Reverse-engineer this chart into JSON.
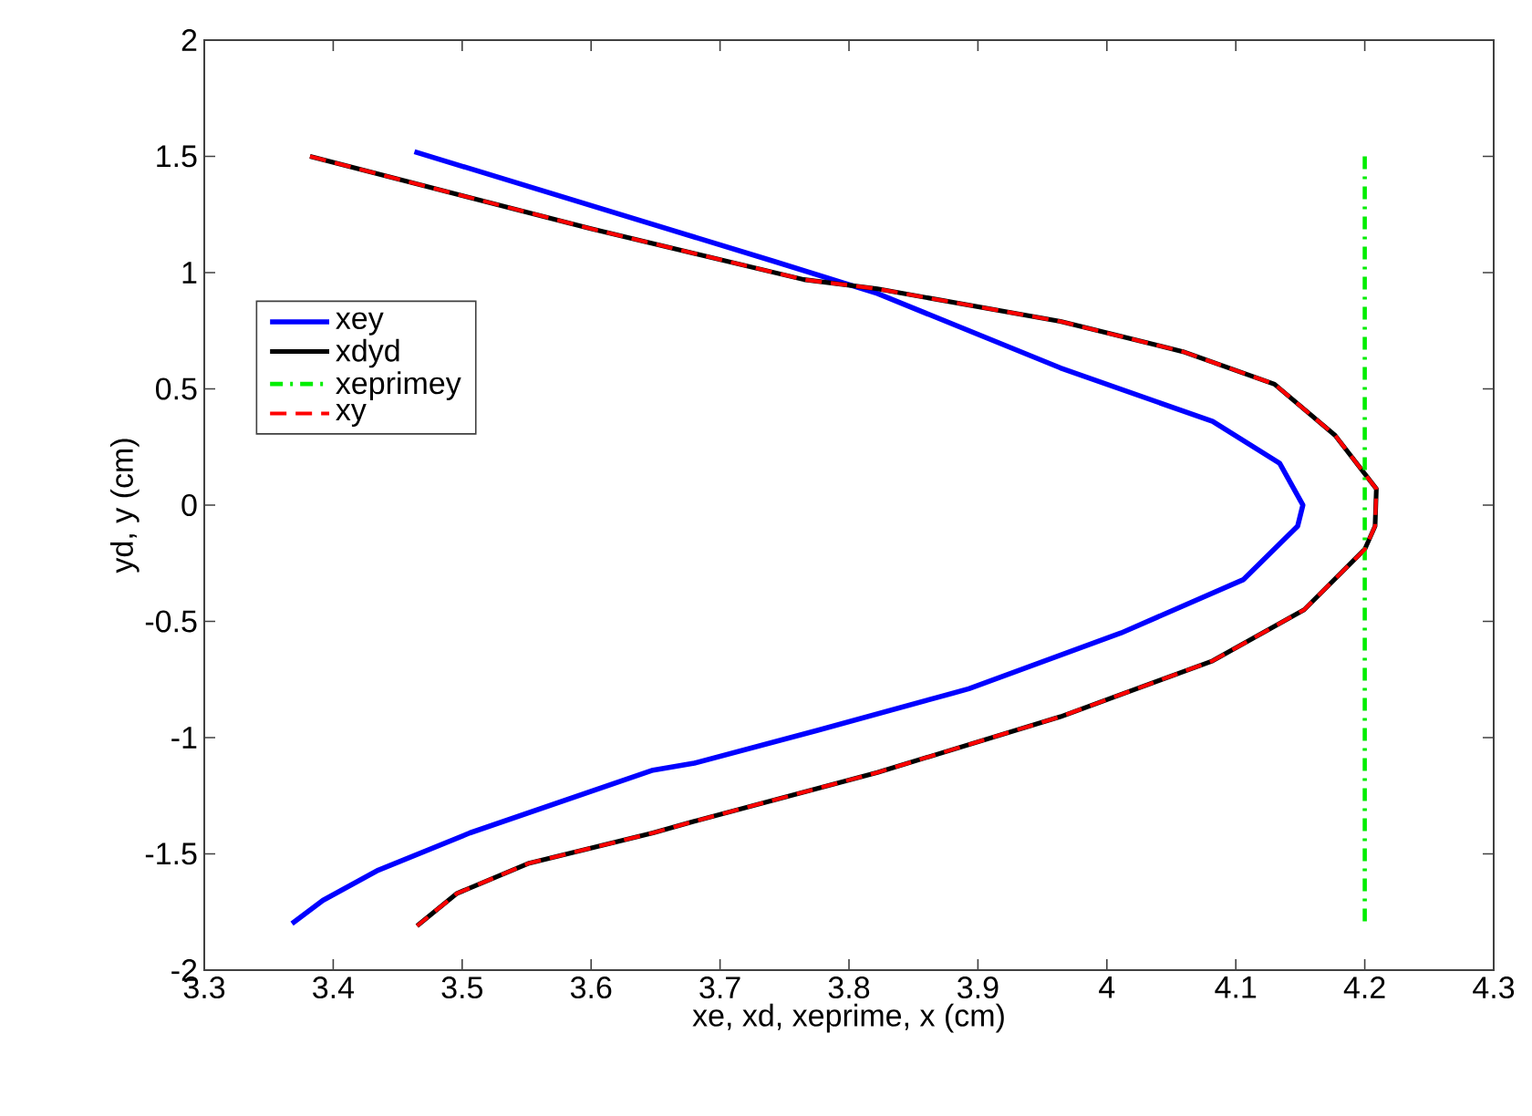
{
  "chart_data": {
    "type": "line",
    "xlabel": "xe, xd, xeprime, x (cm)",
    "ylabel": "yd, y (cm)",
    "xlim": [
      3.3,
      4.3
    ],
    "xticks": [
      3.3,
      3.4,
      3.5,
      3.6,
      3.7,
      3.8,
      3.9,
      4,
      4.1,
      4.2,
      4.3
    ],
    "ylim": [
      -2,
      2
    ],
    "yticks": [
      -2,
      -1.5,
      -1,
      -0.5,
      0,
      0.5,
      1,
      1.5,
      2
    ],
    "grid": false,
    "legend": "left",
    "marker": "none",
    "series": [
      {
        "name": "xey",
        "color": "#0000ff",
        "line_style": "solid",
        "x": [
          3.463,
          3.741,
          3.822,
          3.964,
          4.082,
          4.134,
          4.152,
          4.148,
          4.106,
          4.011,
          3.893,
          3.775,
          3.68,
          3.648,
          3.506,
          3.435,
          3.392,
          3.368
        ],
        "values": [
          1.52,
          1.05,
          0.91,
          0.59,
          0.36,
          0.18,
          0,
          -0.09,
          -0.32,
          -0.55,
          -0.79,
          -0.97,
          -1.11,
          -1.14,
          -1.41,
          -1.57,
          -1.7,
          -1.8
        ]
      },
      {
        "name": "xdyd",
        "color": "#000000",
        "line_style": "solid",
        "x": [
          3.382,
          3.599,
          3.765,
          3.822,
          3.964,
          4.059,
          4.13,
          4.177,
          4.209,
          4.208,
          4.2,
          4.153,
          4.082,
          3.964,
          3.822,
          3.68,
          3.648,
          3.552,
          3.496,
          3.465
        ],
        "values": [
          1.5,
          1.19,
          0.97,
          0.93,
          0.79,
          0.66,
          0.52,
          0.3,
          0.07,
          -0.09,
          -0.19,
          -0.45,
          -0.67,
          -0.91,
          -1.15,
          -1.36,
          -1.41,
          -1.54,
          -1.67,
          -1.81
        ]
      },
      {
        "name": "xeprimey",
        "color": "#00ee00",
        "line_style": "dashdot",
        "x": [
          4.2,
          4.2
        ],
        "values": [
          1.5,
          -1.8
        ]
      },
      {
        "name": "xy",
        "color": "#ff0000",
        "line_style": "dashed",
        "x": [
          3.382,
          3.599,
          3.765,
          3.822,
          3.964,
          4.059,
          4.13,
          4.177,
          4.209,
          4.208,
          4.2,
          4.153,
          4.082,
          3.964,
          3.822,
          3.68,
          3.648,
          3.552,
          3.496,
          3.465
        ],
        "values": [
          1.5,
          1.19,
          0.97,
          0.93,
          0.79,
          0.66,
          0.52,
          0.3,
          0.07,
          -0.09,
          -0.19,
          -0.45,
          -0.67,
          -0.91,
          -1.15,
          -1.36,
          -1.41,
          -1.54,
          -1.67,
          -1.81
        ]
      }
    ]
  }
}
